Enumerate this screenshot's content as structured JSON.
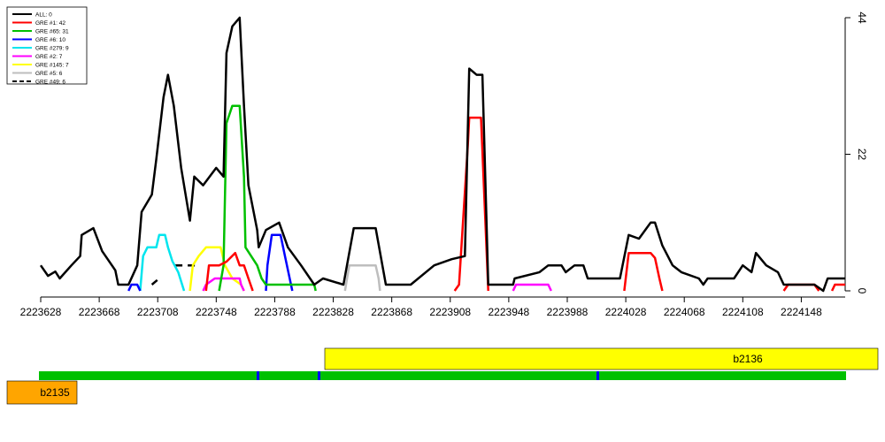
{
  "chart_data": {
    "type": "line",
    "xlim": [
      2223628,
      2224178
    ],
    "xticks": [
      2223628,
      2223668,
      2223708,
      2223748,
      2223788,
      2223828,
      2223868,
      2223908,
      2223948,
      2223988,
      2224028,
      2224068,
      2224108,
      2224148
    ],
    "ylim": [
      0,
      44
    ],
    "yticks": [
      0,
      22,
      44
    ],
    "y_axis_side": "right",
    "legend_position": "top-left",
    "series": [
      {
        "name": "ALL: 0",
        "color": "#000000",
        "dashed": false,
        "x": [
          2223628,
          2223633,
          2223638,
          2223641,
          2223649,
          2223655,
          2223656,
          2223664,
          2223670,
          2223679,
          2223681,
          2223688,
          2223694,
          2223697,
          2223704,
          2223707,
          2223712,
          2223715,
          2223719,
          2223724,
          2223730,
          2223733,
          2223739,
          2223748,
          2223753,
          2223755,
          2223759,
          2223764,
          2223767,
          2223770,
          2223776,
          2223777,
          2223782,
          2223791,
          2223797,
          2223806,
          2223815,
          2223821,
          2223835,
          2223842,
          2223857,
          2223864,
          2223881,
          2223897,
          2223909,
          2223918,
          2223921,
          2223926,
          2223930,
          2223934,
          2223951,
          2223952,
          2223969,
          2223975,
          2223984,
          2223987,
          2223993,
          2223999,
          2224002,
          2224024,
          2224030,
          2224037,
          2224045,
          2224048,
          2224053,
          2224060,
          2224066,
          2224078,
          2224081,
          2224084,
          2224102,
          2224108,
          2224114,
          2224117,
          2224124,
          2224132,
          2224136,
          2224157,
          2224163,
          2224166,
          2224178
        ],
        "values": [
          4.1,
          2.4,
          3.1,
          2,
          4.1,
          5.6,
          9,
          10.1,
          6.4,
          3.3,
          1,
          1,
          4.1,
          12.7,
          15.5,
          21.2,
          31.2,
          34.8,
          29.8,
          19.8,
          11.3,
          18.4,
          17,
          19.8,
          18.4,
          38.3,
          42.6,
          44,
          29.8,
          17,
          9.8,
          7,
          9.8,
          11,
          7,
          4.1,
          1,
          2,
          1,
          10.1,
          10.1,
          1,
          1,
          4.1,
          5.1,
          5.6,
          35.8,
          34.8,
          34.8,
          1,
          1,
          2,
          3,
          4.1,
          4.1,
          3,
          4.1,
          4.1,
          2,
          2,
          9,
          8.4,
          11,
          11,
          7.3,
          4.1,
          3,
          2,
          1,
          2,
          2,
          4.1,
          3,
          6.1,
          4.1,
          3,
          1,
          1,
          0,
          2,
          2
        ]
      },
      {
        "name": "GRE #1: 42",
        "color": "#ff0000",
        "dashed": false,
        "x": [
          2223741,
          2223743,
          2223750,
          2223755,
          2223761,
          2223764,
          2223767,
          2223770,
          2223773,
          null,
          2223911,
          2223914,
          2223920,
          2223921,
          2223929,
          2223932,
          2223934,
          null,
          2224027,
          2224030,
          2224045,
          2224048,
          2224051,
          2224053,
          null,
          2224136,
          2224139,
          2224157,
          2224160,
          null,
          2224169,
          2224171,
          2224178
        ],
        "values": [
          0,
          4.1,
          4.1,
          4.7,
          6.1,
          4.1,
          4.1,
          2,
          0,
          null,
          0,
          1,
          23.4,
          27.9,
          27.9,
          11.3,
          0,
          null,
          0,
          6.1,
          6.1,
          5.3,
          2,
          0,
          null,
          0,
          1,
          1,
          0,
          null,
          0,
          1,
          1
        ]
      },
      {
        "name": "GRE #65: 31",
        "color": "#00c000",
        "dashed": false,
        "x": [
          2223750,
          2223753,
          2223755,
          2223759,
          2223764,
          2223767,
          2223768,
          2223776,
          2223779,
          2223782,
          2223815,
          2223816
        ],
        "values": [
          0,
          4.1,
          27,
          29.8,
          29.8,
          18.4,
          7,
          4.1,
          2,
          1,
          1,
          0
        ]
      },
      {
        "name": "GRE #6: 10",
        "color": "#0000ff",
        "dashed": false,
        "x": [
          2223688,
          2223690,
          2223694,
          2223696,
          null,
          2223782,
          2223783,
          2223786,
          2223792,
          2223795,
          2223800
        ],
        "values": [
          0,
          1,
          1,
          0,
          null,
          0,
          4.1,
          9,
          9,
          5.6,
          0
        ]
      },
      {
        "name": "GRE #279: 9",
        "color": "#00e5ee",
        "dashed": false,
        "x": [
          2223696,
          2223698,
          2223701,
          2223707,
          2223709,
          2223713,
          2223715,
          2223718,
          2223722,
          2223726
        ],
        "values": [
          0,
          5.6,
          7,
          7,
          9,
          9,
          7,
          4.8,
          3,
          0
        ]
      },
      {
        "name": "GRE #2: 7",
        "color": "#ff00ff",
        "dashed": false,
        "x": [
          2223739,
          2223741,
          2223747,
          2223764,
          2223765,
          2223767,
          null,
          2223951,
          2223953,
          2223975,
          2223977
        ],
        "values": [
          0,
          1,
          2,
          2,
          1,
          0,
          null,
          0,
          1,
          1,
          0
        ]
      },
      {
        "name": "GRE #145: 7",
        "color": "#ffff00",
        "dashed": false,
        "x": [
          2223730,
          2223732,
          2223736,
          2223741,
          2223751,
          2223754,
          2223759,
          2223765,
          2223767
        ],
        "values": [
          0,
          4.1,
          5.6,
          7,
          7,
          4.1,
          2,
          1,
          0
        ]
      },
      {
        "name": "GRE #5: 6",
        "color": "#bebebe",
        "dashed": false,
        "x": [
          2223836,
          2223839,
          2223857,
          2223859,
          2223860
        ],
        "values": [
          0,
          4.1,
          4.1,
          2,
          0
        ]
      },
      {
        "name": "GRE #49: 6",
        "color": "#000000",
        "dashed": true,
        "x": [
          2223704,
          2223709,
          null,
          2223720,
          2223737
        ],
        "values": [
          1,
          2,
          null,
          4.1,
          4.1
        ]
      }
    ],
    "genes": [
      {
        "name": "b2136",
        "color": "#ffff00"
      },
      {
        "name": "b2135",
        "color": "#ffa500"
      }
    ]
  }
}
